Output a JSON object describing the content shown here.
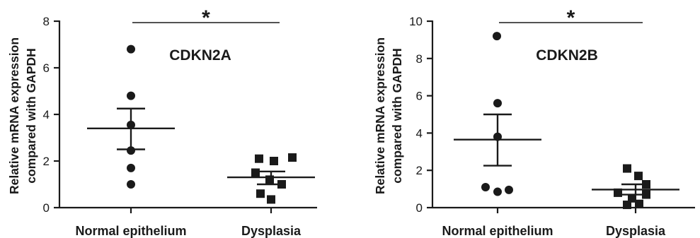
{
  "chart_data": [
    {
      "type": "scatter",
      "title": "CDKN2A",
      "ylabel_line1": "Relative mRNA expression",
      "ylabel_line2": "compared with GAPDH",
      "xlabel": "",
      "categories": [
        "Normal epithelium",
        "Dysplasia"
      ],
      "ylim": [
        0,
        8
      ],
      "yticks": [
        0,
        2,
        4,
        6,
        8
      ],
      "grid": false,
      "significance": "*",
      "series": [
        {
          "marker": "circle",
          "values": [
            6.8,
            4.8,
            3.55,
            2.45,
            1.7,
            1.0
          ],
          "mean": 3.4,
          "sem": [
            2.5,
            4.25
          ]
        },
        {
          "marker": "square",
          "values": [
            2.1,
            2.0,
            2.15,
            1.5,
            1.2,
            1.0,
            0.6,
            0.35
          ],
          "mean": 1.3,
          "sem": [
            1.0,
            1.55
          ]
        }
      ]
    },
    {
      "type": "scatter",
      "title": "CDKN2B",
      "ylabel_line1": "Relative mRNA expression",
      "ylabel_line2": "compared with GAPDH",
      "xlabel": "",
      "categories": [
        "Normal epithelium",
        "Dysplasia"
      ],
      "ylim": [
        0,
        10
      ],
      "yticks": [
        0,
        2,
        4,
        6,
        8,
        10
      ],
      "grid": false,
      "significance": "*",
      "series": [
        {
          "marker": "circle",
          "values": [
            9.2,
            5.6,
            3.8,
            1.1,
            0.85,
            0.95
          ],
          "mean": 3.65,
          "sem": [
            2.25,
            5.0
          ]
        },
        {
          "marker": "square",
          "values": [
            2.1,
            1.7,
            1.25,
            0.8,
            0.7,
            0.5,
            0.2,
            0.15
          ],
          "mean": 0.97,
          "sem": [
            0.7,
            1.25
          ]
        }
      ]
    }
  ]
}
